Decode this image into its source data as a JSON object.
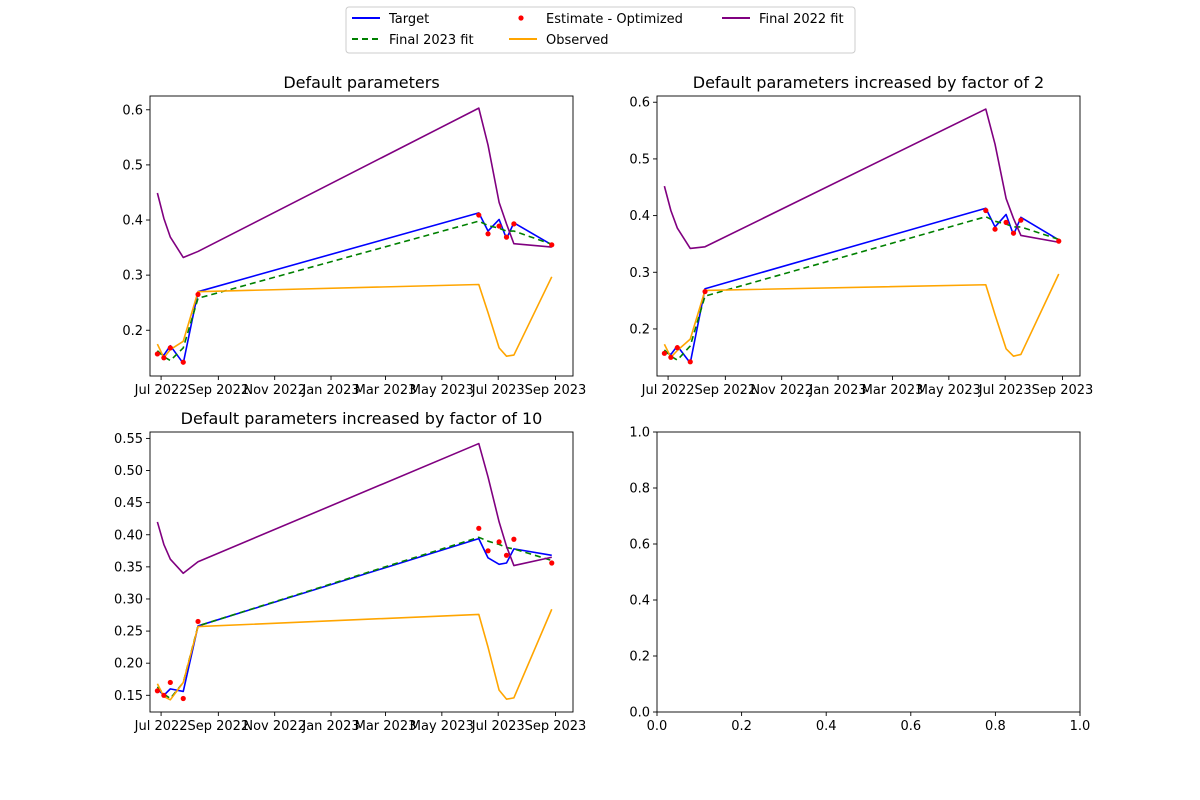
{
  "legend": {
    "entries": [
      {
        "label": "Target",
        "color": "#0000ff",
        "style": "solid"
      },
      {
        "label": "Final 2023 fit",
        "color": "#008000",
        "style": "dashed"
      },
      {
        "label": "Estimate - Optimized",
        "color": "#ff0000",
        "style": "dot"
      },
      {
        "label": "Observed",
        "color": "#ffa500",
        "style": "solid"
      },
      {
        "label": "Final 2022 fit",
        "color": "#800080",
        "style": "solid"
      }
    ]
  },
  "chart_data": [
    {
      "type": "line",
      "title": "Default parameters",
      "xlabel": "",
      "ylabel": "",
      "xlim": [
        "2022-06-19",
        "2023-09-20"
      ],
      "ylim": [
        0.117,
        0.625
      ],
      "xticks": [
        {
          "date": "2022-07-01",
          "label": "Jul 2022"
        },
        {
          "date": "2022-09-01",
          "label": "Sep 2022"
        },
        {
          "date": "2022-11-01",
          "label": "Nov 2022"
        },
        {
          "date": "2023-01-01",
          "label": "Jan 2023"
        },
        {
          "date": "2023-03-01",
          "label": "Mar 2023"
        },
        {
          "date": "2023-05-01",
          "label": "May 2023"
        },
        {
          "date": "2023-07-01",
          "label": "Jul 2023"
        },
        {
          "date": "2023-09-01",
          "label": "Sep 2023"
        }
      ],
      "yticks": [
        {
          "value": 0.2,
          "label": "0.2"
        },
        {
          "value": 0.3,
          "label": "0.3"
        },
        {
          "value": 0.4,
          "label": "0.4"
        },
        {
          "value": 0.5,
          "label": "0.5"
        },
        {
          "value": 0.6,
          "label": "0.6"
        }
      ],
      "series": [
        {
          "name": "Target",
          "kind": "line",
          "color": "#0000ff",
          "dash": "",
          "x": [
            "2022-06-27",
            "2022-07-04",
            "2022-07-11",
            "2022-07-25",
            "2022-08-10",
            "2023-06-10",
            "2023-06-20",
            "2023-07-02",
            "2023-07-10",
            "2023-07-18",
            "2023-08-28"
          ],
          "y": [
            0.16,
            0.155,
            0.172,
            0.14,
            0.27,
            0.413,
            0.38,
            0.401,
            0.366,
            0.395,
            0.355
          ]
        },
        {
          "name": "Final 2023 fit",
          "kind": "line",
          "color": "#008000",
          "dash": "6,4",
          "x": [
            "2022-06-27",
            "2022-07-04",
            "2022-07-11",
            "2022-07-25",
            "2022-08-10",
            "2023-06-10",
            "2023-06-20",
            "2023-07-02",
            "2023-07-10",
            "2023-07-18",
            "2023-08-28"
          ],
          "y": [
            0.163,
            0.152,
            0.145,
            0.168,
            0.258,
            0.398,
            0.39,
            0.385,
            0.38,
            0.38,
            0.356
          ]
        },
        {
          "name": "Observed",
          "kind": "line",
          "color": "#ffa500",
          "dash": "",
          "x": [
            "2022-06-27",
            "2022-07-04",
            "2022-07-11",
            "2022-07-25",
            "2022-08-10",
            "2023-06-10",
            "2023-06-20",
            "2023-07-02",
            "2023-07-10",
            "2023-07-18",
            "2023-08-28"
          ],
          "y": [
            0.175,
            0.15,
            0.165,
            0.18,
            0.27,
            0.283,
            0.232,
            0.168,
            0.153,
            0.155,
            0.297
          ]
        },
        {
          "name": "Final 2022 fit",
          "kind": "line",
          "color": "#800080",
          "dash": "",
          "x": [
            "2022-06-27",
            "2022-07-04",
            "2022-07-11",
            "2022-07-25",
            "2022-08-10",
            "2023-06-10",
            "2023-06-20",
            "2023-07-02",
            "2023-07-10",
            "2023-07-18",
            "2023-08-28"
          ],
          "y": [
            0.449,
            0.403,
            0.369,
            0.332,
            0.343,
            0.603,
            0.536,
            0.432,
            0.393,
            0.357,
            0.351
          ]
        },
        {
          "name": "Estimate - Optimized",
          "kind": "scatter",
          "color": "#ff0000",
          "x": [
            "2022-06-27",
            "2022-07-04",
            "2022-07-11",
            "2022-07-25",
            "2022-08-10",
            "2023-06-10",
            "2023-06-20",
            "2023-07-02",
            "2023-07-10",
            "2023-07-18",
            "2023-08-28"
          ],
          "y": [
            0.157,
            0.15,
            0.168,
            0.142,
            0.265,
            0.409,
            0.375,
            0.389,
            0.369,
            0.393,
            0.355
          ]
        }
      ]
    },
    {
      "type": "line",
      "title": "Default parameters increased by factor of 2",
      "xlabel": "",
      "ylabel": "",
      "xlim": [
        "2022-06-19",
        "2023-09-20"
      ],
      "ylim": [
        0.117,
        0.611
      ],
      "xticks": [
        {
          "date": "2022-07-01",
          "label": "Jul 2022"
        },
        {
          "date": "2022-09-01",
          "label": "Sep 2022"
        },
        {
          "date": "2022-11-01",
          "label": "Nov 2022"
        },
        {
          "date": "2023-01-01",
          "label": "Jan 2023"
        },
        {
          "date": "2023-03-01",
          "label": "Mar 2023"
        },
        {
          "date": "2023-05-01",
          "label": "May 2023"
        },
        {
          "date": "2023-07-01",
          "label": "Jul 2023"
        },
        {
          "date": "2023-09-01",
          "label": "Sep 2023"
        }
      ],
      "yticks": [
        {
          "value": 0.2,
          "label": "0.2"
        },
        {
          "value": 0.3,
          "label": "0.3"
        },
        {
          "value": 0.4,
          "label": "0.4"
        },
        {
          "value": 0.5,
          "label": "0.5"
        },
        {
          "value": 0.6,
          "label": "0.6"
        }
      ],
      "series": [
        {
          "name": "Target",
          "kind": "line",
          "color": "#0000ff",
          "dash": "",
          "x": [
            "2022-06-27",
            "2022-07-04",
            "2022-07-11",
            "2022-07-25",
            "2022-08-10",
            "2023-06-10",
            "2023-06-20",
            "2023-07-02",
            "2023-07-10",
            "2023-07-18",
            "2023-08-28"
          ],
          "y": [
            0.16,
            0.155,
            0.17,
            0.14,
            0.271,
            0.413,
            0.38,
            0.402,
            0.366,
            0.397,
            0.357
          ]
        },
        {
          "name": "Final 2023 fit",
          "kind": "line",
          "color": "#008000",
          "dash": "6,4",
          "x": [
            "2022-06-27",
            "2022-07-04",
            "2022-07-11",
            "2022-07-25",
            "2022-08-10",
            "2023-06-10",
            "2023-06-20",
            "2023-07-02",
            "2023-07-10",
            "2023-07-18",
            "2023-08-28"
          ],
          "y": [
            0.163,
            0.152,
            0.145,
            0.17,
            0.258,
            0.398,
            0.39,
            0.385,
            0.38,
            0.38,
            0.358
          ]
        },
        {
          "name": "Observed",
          "kind": "line",
          "color": "#ffa500",
          "dash": "",
          "x": [
            "2022-06-27",
            "2022-07-04",
            "2022-07-11",
            "2022-07-25",
            "2022-08-10",
            "2023-06-10",
            "2023-06-20",
            "2023-07-02",
            "2023-07-10",
            "2023-07-18",
            "2023-08-28"
          ],
          "y": [
            0.173,
            0.15,
            0.162,
            0.182,
            0.268,
            0.278,
            0.225,
            0.165,
            0.152,
            0.155,
            0.297
          ]
        },
        {
          "name": "Final 2022 fit",
          "kind": "line",
          "color": "#800080",
          "dash": "",
          "x": [
            "2022-06-27",
            "2022-07-04",
            "2022-07-11",
            "2022-07-25",
            "2022-08-10",
            "2023-06-10",
            "2023-06-20",
            "2023-07-02",
            "2023-07-10",
            "2023-07-18",
            "2023-08-28"
          ],
          "y": [
            0.452,
            0.409,
            0.378,
            0.342,
            0.345,
            0.588,
            0.526,
            0.43,
            0.395,
            0.365,
            0.353
          ]
        },
        {
          "name": "Estimate - Optimized",
          "kind": "scatter",
          "color": "#ff0000",
          "x": [
            "2022-06-27",
            "2022-07-04",
            "2022-07-11",
            "2022-07-25",
            "2022-08-10",
            "2023-06-10",
            "2023-06-20",
            "2023-07-02",
            "2023-07-10",
            "2023-07-18",
            "2023-08-28"
          ],
          "y": [
            0.157,
            0.15,
            0.167,
            0.142,
            0.266,
            0.409,
            0.376,
            0.388,
            0.369,
            0.392,
            0.355
          ]
        }
      ]
    },
    {
      "type": "line",
      "title": "Default parameters increased by factor of 10",
      "xlabel": "",
      "ylabel": "",
      "xlim": [
        "2022-06-19",
        "2023-09-20"
      ],
      "ylim": [
        0.124,
        0.56
      ],
      "xticks": [
        {
          "date": "2022-07-01",
          "label": "Jul 2022"
        },
        {
          "date": "2022-09-01",
          "label": "Sep 2022"
        },
        {
          "date": "2022-11-01",
          "label": "Nov 2022"
        },
        {
          "date": "2023-01-01",
          "label": "Jan 2023"
        },
        {
          "date": "2023-03-01",
          "label": "Mar 2023"
        },
        {
          "date": "2023-05-01",
          "label": "May 2023"
        },
        {
          "date": "2023-07-01",
          "label": "Jul 2023"
        },
        {
          "date": "2023-09-01",
          "label": "Sep 2023"
        }
      ],
      "yticks": [
        {
          "value": 0.15,
          "label": "0.15"
        },
        {
          "value": 0.2,
          "label": "0.20"
        },
        {
          "value": 0.25,
          "label": "0.25"
        },
        {
          "value": 0.3,
          "label": "0.30"
        },
        {
          "value": 0.35,
          "label": "0.35"
        },
        {
          "value": 0.4,
          "label": "0.40"
        },
        {
          "value": 0.45,
          "label": "0.45"
        },
        {
          "value": 0.5,
          "label": "0.50"
        },
        {
          "value": 0.55,
          "label": "0.55"
        }
      ],
      "series": [
        {
          "name": "Target",
          "kind": "line",
          "color": "#0000ff",
          "dash": "",
          "x": [
            "2022-06-27",
            "2022-07-04",
            "2022-07-11",
            "2022-07-25",
            "2022-08-10",
            "2023-06-10",
            "2023-06-20",
            "2023-07-02",
            "2023-07-10",
            "2023-07-18",
            "2023-08-28"
          ],
          "y": [
            0.16,
            0.15,
            0.16,
            0.156,
            0.258,
            0.394,
            0.364,
            0.354,
            0.356,
            0.378,
            0.368
          ]
        },
        {
          "name": "Final 2023 fit",
          "kind": "line",
          "color": "#008000",
          "dash": "6,4",
          "x": [
            "2022-06-27",
            "2022-07-04",
            "2022-07-11",
            "2022-07-25",
            "2022-08-10",
            "2023-06-10",
            "2023-06-20",
            "2023-07-02",
            "2023-07-10",
            "2023-07-18",
            "2023-08-28"
          ],
          "y": [
            0.163,
            0.152,
            0.145,
            0.17,
            0.258,
            0.396,
            0.39,
            0.385,
            0.38,
            0.378,
            0.36
          ]
        },
        {
          "name": "Observed",
          "kind": "line",
          "color": "#ffa500",
          "dash": "",
          "x": [
            "2022-06-27",
            "2022-07-04",
            "2022-07-11",
            "2022-07-25",
            "2022-08-10",
            "2023-06-10",
            "2023-06-20",
            "2023-07-02",
            "2023-07-10",
            "2023-07-18",
            "2023-08-28"
          ],
          "y": [
            0.168,
            0.148,
            0.143,
            0.17,
            0.257,
            0.276,
            0.225,
            0.158,
            0.144,
            0.146,
            0.284
          ]
        },
        {
          "name": "Final 2022 fit",
          "kind": "line",
          "color": "#800080",
          "dash": "",
          "x": [
            "2022-06-27",
            "2022-07-04",
            "2022-07-11",
            "2022-07-25",
            "2022-08-10",
            "2023-06-10",
            "2023-06-20",
            "2023-07-02",
            "2023-07-10",
            "2023-07-18",
            "2023-08-28"
          ],
          "y": [
            0.42,
            0.385,
            0.362,
            0.34,
            0.358,
            0.542,
            0.49,
            0.42,
            0.382,
            0.352,
            0.365
          ]
        },
        {
          "name": "Estimate - Optimized",
          "kind": "scatter",
          "color": "#ff0000",
          "x": [
            "2022-06-27",
            "2022-07-04",
            "2022-07-11",
            "2022-07-25",
            "2022-08-10",
            "2023-06-10",
            "2023-06-20",
            "2023-07-02",
            "2023-07-10",
            "2023-07-18",
            "2023-08-28"
          ],
          "y": [
            0.157,
            0.15,
            0.17,
            0.145,
            0.265,
            0.41,
            0.375,
            0.389,
            0.368,
            0.393,
            0.356
          ]
        }
      ]
    },
    {
      "type": "line",
      "title": "",
      "xlabel": "",
      "ylabel": "",
      "xlim": [
        0.0,
        1.0
      ],
      "ylim": [
        0.0,
        1.0
      ],
      "xticks": [
        {
          "value": 0.0,
          "label": "0.0"
        },
        {
          "value": 0.2,
          "label": "0.2"
        },
        {
          "value": 0.4,
          "label": "0.4"
        },
        {
          "value": 0.6,
          "label": "0.6"
        },
        {
          "value": 0.8,
          "label": "0.8"
        },
        {
          "value": 1.0,
          "label": "1.0"
        }
      ],
      "yticks": [
        {
          "value": 0.0,
          "label": "0.0"
        },
        {
          "value": 0.2,
          "label": "0.2"
        },
        {
          "value": 0.4,
          "label": "0.4"
        },
        {
          "value": 0.6,
          "label": "0.6"
        },
        {
          "value": 0.8,
          "label": "0.8"
        },
        {
          "value": 1.0,
          "label": "1.0"
        }
      ],
      "series": []
    }
  ]
}
